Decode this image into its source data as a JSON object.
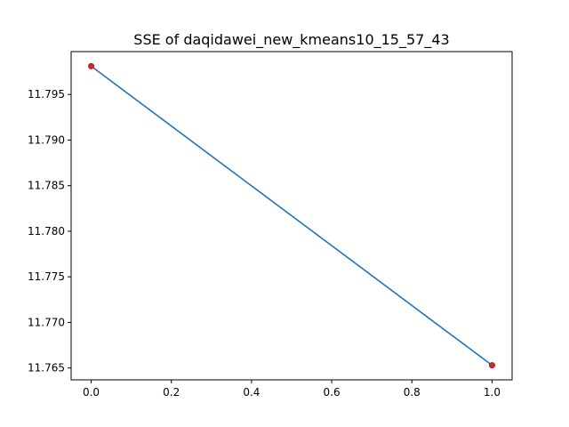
{
  "chart_data": {
    "type": "line",
    "title": "SSE of daqidawei_new_kmeans10_15_57_43",
    "xlabel": "",
    "ylabel": "",
    "x": [
      0.0,
      1.0
    ],
    "y": [
      11.7981,
      11.7653
    ],
    "xlim": [
      -0.05,
      1.05
    ],
    "ylim": [
      11.7637,
      11.7997
    ],
    "xticks": [
      0.0,
      0.2,
      0.4,
      0.6,
      0.8,
      1.0
    ],
    "xtick_labels": [
      "0.0",
      "0.2",
      "0.4",
      "0.6",
      "0.8",
      "1.0"
    ],
    "yticks": [
      11.765,
      11.77,
      11.775,
      11.78,
      11.785,
      11.79,
      11.795
    ],
    "ytick_labels": [
      "11.765",
      "11.770",
      "11.775",
      "11.780",
      "11.785",
      "11.790",
      "11.795"
    ],
    "grid": false,
    "line_color": "#1f77b4",
    "marker_color": "#d62728"
  }
}
